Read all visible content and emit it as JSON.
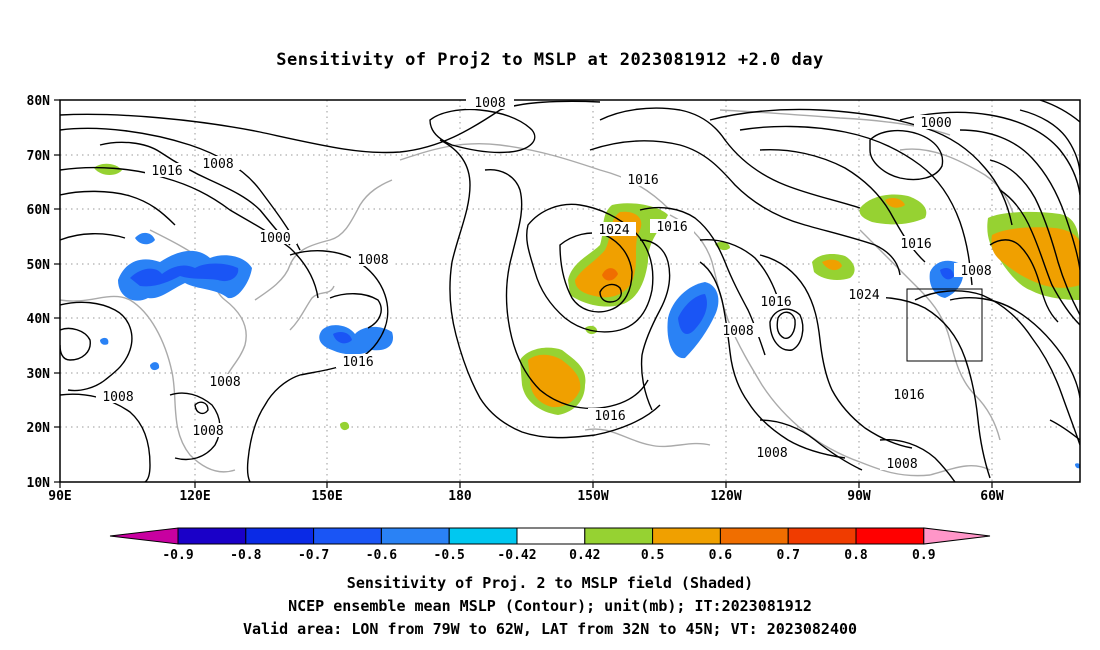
{
  "title": "Sensitivity of Proj2 to MSLP at 2023081912 +2.0 day",
  "lat_labels": [
    "80N",
    "70N",
    "60N",
    "50N",
    "40N",
    "30N",
    "20N",
    "10N"
  ],
  "lon_labels": [
    "90E",
    "120E",
    "150E",
    "180",
    "150W",
    "120W",
    "90W",
    "60W"
  ],
  "contour_labels": [
    "1008",
    "1016",
    "1008",
    "1000",
    "1008",
    "1016",
    "1024",
    "1016",
    "1016",
    "1000",
    "1016",
    "1008",
    "1016",
    "1024",
    "1008",
    "1008",
    "1008",
    "1008",
    "1016",
    "1016",
    "1008",
    "1008"
  ],
  "colorbar": {
    "labels": [
      "-0.9",
      "-0.8",
      "-0.7",
      "-0.6",
      "-0.5",
      "-0.42",
      "0.42",
      "0.5",
      "0.6",
      "0.7",
      "0.8",
      "0.9"
    ],
    "colors": [
      "#1a00c8",
      "#0a2ae6",
      "#1a55f5",
      "#2a82f5",
      "#00c8f0",
      "#ffffff",
      "#96d232",
      "#f0a000",
      "#f06e00",
      "#f03c00",
      "#ff0000"
    ],
    "low_end_color": "#c800a0",
    "high_end_color": "#ff96c8"
  },
  "sensitivity_colors": {
    "positive_low": "#96d232",
    "positive_mid": "#f0a000",
    "positive_high": "#f06e00",
    "negative_low": "#2a82f5",
    "negative_mid": "#1a55f5",
    "negative_high": "#0a2ae6"
  },
  "footer": {
    "line1": "Sensitivity of Proj. 2 to MSLP field (Shaded)",
    "line2": "NCEP ensemble mean MSLP (Contour); unit(mb); IT:2023081912",
    "line3": "Valid area: LON from 79W to 62W, LAT from 32N to 45N; VT: 2023082400"
  }
}
